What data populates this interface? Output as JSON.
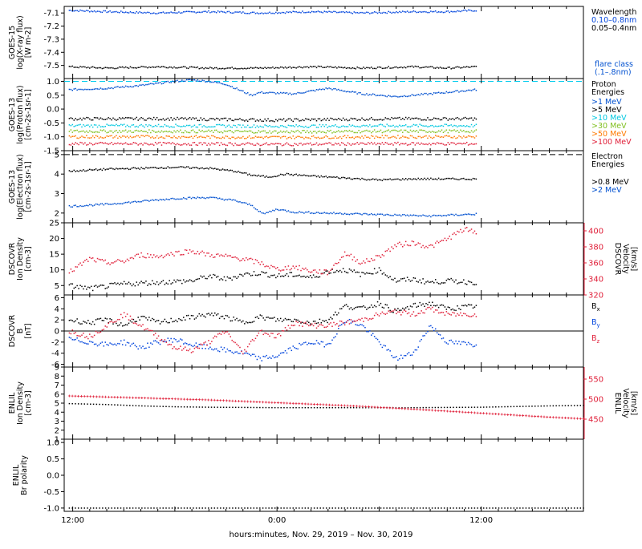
{
  "xaxis": {
    "label": "hours:minutes, Nov. 29, 2019 – Nov. 30, 2019",
    "range_hours": [
      11.5,
      16.0
    ],
    "tick_labels": [
      {
        "hour": 12,
        "label": "12:00"
      },
      {
        "hour": 24,
        "label": "0:00"
      },
      {
        "hour": 36,
        "label": "12:00"
      }
    ]
  },
  "chart_data": [
    {
      "id": "goes15-xray",
      "type": "scatter",
      "ylabel": [
        "GOES-15",
        "log(X-ray flux)",
        "[W m-2]"
      ],
      "ylim": [
        -7.6,
        -7.05
      ],
      "yticks": [
        "-7.1",
        "-7.2",
        "-7.3",
        "-7.4",
        "-7.5"
      ],
      "yticks_values": [
        -7.1,
        -7.2,
        -7.3,
        -7.4,
        -7.5
      ],
      "legend_title": "Wavelength",
      "series": [
        {
          "name": "0.10–0.8nm",
          "color": "#0044dd",
          "x": [
            11.8,
            14,
            17,
            20,
            23,
            26,
            29,
            32,
            34,
            35.7
          ],
          "y": [
            -7.08,
            -7.09,
            -7.1,
            -7.09,
            -7.1,
            -7.09,
            -7.1,
            -7.09,
            -7.09,
            -7.08
          ]
        },
        {
          "name": "0.05–0.4nm",
          "color": "#000000",
          "x": [
            11.8,
            14,
            17,
            20,
            23,
            26,
            29,
            32,
            34,
            35.7
          ],
          "y": [
            -7.51,
            -7.52,
            -7.51,
            -7.52,
            -7.52,
            -7.51,
            -7.52,
            -7.51,
            -7.52,
            -7.51
          ]
        }
      ],
      "note": [
        "flare class",
        "(.1–.8nm)"
      ]
    },
    {
      "id": "goes13-proton",
      "type": "scatter",
      "ylabel": [
        "GOES-13",
        "log(Proton flux)",
        "[cm-2s-1sr-1]"
      ],
      "ylim": [
        -1.5,
        1.1
      ],
      "yticks": [
        "1.0",
        "0.5",
        "0.0",
        "-0.5",
        "-1.0",
        "-1.5"
      ],
      "yticks_values": [
        1.0,
        0.5,
        0.0,
        -0.5,
        -1.0,
        -1.5
      ],
      "legend_title": [
        "Proton",
        "Energies"
      ],
      "series": [
        {
          "name": ">1 MeV",
          "color": "#0050d0",
          "x": [
            11.8,
            14,
            16,
            18,
            19,
            20,
            21,
            22.5,
            23,
            25,
            27,
            29,
            31,
            33,
            35.7
          ],
          "y": [
            0.7,
            0.75,
            0.85,
            1.0,
            1.05,
            1.0,
            0.9,
            0.5,
            0.6,
            0.55,
            0.75,
            0.55,
            0.45,
            0.55,
            0.7
          ]
        },
        {
          "name": ">5 MeV",
          "color": "#000000",
          "x": [
            11.8,
            18,
            24,
            30,
            35.7
          ],
          "y": [
            -0.35,
            -0.35,
            -0.4,
            -0.35,
            -0.35
          ]
        },
        {
          "name": ">10 MeV",
          "color": "#00c8e0",
          "x": [
            11.8,
            18,
            24,
            30,
            35.7
          ],
          "y": [
            -0.6,
            -0.6,
            -0.62,
            -0.6,
            -0.6
          ]
        },
        {
          "name": ">30 MeV",
          "color": "#80c020",
          "x": [
            11.8,
            18,
            24,
            30,
            35.7
          ],
          "y": [
            -0.8,
            -0.8,
            -0.82,
            -0.8,
            -0.8
          ]
        },
        {
          "name": ">50 MeV",
          "color": "#ff7a00",
          "x": [
            11.8,
            18,
            24,
            30,
            35.7
          ],
          "y": [
            -1.0,
            -1.0,
            -1.02,
            -1.0,
            -1.0
          ]
        },
        {
          "name": ">100 MeV",
          "color": "#e0203a",
          "x": [
            11.8,
            18,
            24,
            30,
            35.7
          ],
          "y": [
            -1.25,
            -1.25,
            -1.27,
            -1.25,
            -1.25
          ]
        }
      ],
      "threshold": {
        "y": 1.0,
        "color": "#00ccee"
      }
    },
    {
      "id": "goes13-electron",
      "type": "scatter",
      "ylabel": [
        "GOES-13",
        "log(Electron flux)",
        "[cm-2s-1sr-1]"
      ],
      "ylim": [
        1.5,
        5.2
      ],
      "yticks": [
        "5",
        "4",
        "3",
        "2"
      ],
      "yticks_values": [
        5,
        4,
        3,
        2
      ],
      "legend_title": [
        "Electron",
        "Energies"
      ],
      "series": [
        {
          "name": ">0.8 MeV",
          "color": "#000000",
          "x": [
            11.8,
            14,
            16,
            18,
            20,
            21.5,
            22.5,
            23.5,
            24.5,
            26,
            28,
            30,
            32,
            34,
            35.7
          ],
          "y": [
            4.15,
            4.25,
            4.3,
            4.35,
            4.3,
            4.15,
            3.95,
            3.85,
            4.0,
            3.9,
            3.8,
            3.7,
            3.75,
            3.75,
            3.75
          ]
        },
        {
          "name": ">2 MeV",
          "color": "#0050d0",
          "x": [
            11.8,
            14,
            16,
            18,
            20,
            21.5,
            22.5,
            23.2,
            24,
            25,
            27,
            29,
            31,
            33,
            35.7
          ],
          "y": [
            2.35,
            2.45,
            2.6,
            2.75,
            2.8,
            2.65,
            2.4,
            1.95,
            2.2,
            2.05,
            2.0,
            1.95,
            1.9,
            1.85,
            1.95
          ]
        }
      ],
      "threshold": {
        "y": 5.0,
        "color": "#000000"
      }
    },
    {
      "id": "dscovr-plasma",
      "type": "scatter",
      "ylabel": [
        "DSCOVR",
        "Ion Density",
        "[cm-3]"
      ],
      "ylim": [
        2,
        25
      ],
      "yticks": [
        "25",
        "20",
        "15",
        "10",
        "5"
      ],
      "yticks_values": [
        25,
        20,
        15,
        10,
        5
      ],
      "ylabel_right": [
        "DSCOVR",
        "Velocity",
        "[km/s]"
      ],
      "ylim_right": [
        320,
        410
      ],
      "yticks_right": [
        "400",
        "380",
        "360",
        "340",
        "320"
      ],
      "yticks_right_values": [
        400,
        380,
        360,
        340,
        320
      ],
      "series": [
        {
          "name": "Ion Density",
          "color": "#000000",
          "axis": "left",
          "x": [
            11.8,
            13,
            15,
            17,
            19,
            20,
            21,
            22,
            23,
            24,
            25,
            26,
            27,
            28,
            29,
            30,
            31,
            32,
            33,
            34,
            35.7
          ],
          "y": [
            5,
            4,
            5.5,
            6,
            6.5,
            8,
            7,
            8.5,
            9,
            8,
            8.5,
            7.5,
            9.5,
            10,
            8.5,
            10,
            6.5,
            7,
            6,
            6.5,
            6
          ]
        },
        {
          "name": "Velocity",
          "color": "#e0203a",
          "axis": "right",
          "x": [
            11.8,
            13,
            14,
            15,
            16,
            17,
            18,
            19,
            20,
            21,
            22,
            23,
            24,
            25,
            26,
            27,
            28,
            29,
            30,
            31,
            32,
            33,
            34,
            35,
            35.7
          ],
          "y": [
            348,
            365,
            360,
            362,
            370,
            368,
            372,
            375,
            370,
            368,
            365,
            360,
            352,
            355,
            350,
            348,
            372,
            360,
            368,
            382,
            385,
            380,
            390,
            402,
            398
          ]
        }
      ]
    },
    {
      "id": "dscovr-mag",
      "type": "scatter",
      "ylabel": [
        "DSCOVR",
        "B",
        "[nT]"
      ],
      "ylim": [
        -6.5,
        6.5
      ],
      "yticks": [
        "6",
        "4",
        "2",
        "0",
        "-2",
        "-4",
        "-6"
      ],
      "yticks_values": [
        6,
        4,
        2,
        0,
        -2,
        -4,
        -6
      ],
      "zero_line": true,
      "series": [
        {
          "name": "Bx",
          "color": "#000000",
          "x": [
            11.8,
            13,
            14,
            15,
            16,
            17,
            18,
            19,
            20,
            21,
            22,
            23,
            24,
            25,
            26,
            27,
            28,
            29,
            30,
            31,
            32,
            33,
            34,
            35.7
          ],
          "y": [
            2,
            1.5,
            2,
            1,
            2.5,
            1.5,
            2,
            2.5,
            3,
            2.5,
            1.5,
            2.5,
            2,
            2,
            1.5,
            2,
            4.5,
            4,
            5,
            3.5,
            4.5,
            5,
            4,
            4.5
          ]
        },
        {
          "name": "By",
          "color": "#0044dd",
          "x": [
            11.8,
            13,
            14,
            15,
            16,
            17,
            18,
            19,
            20,
            21,
            22,
            23,
            24,
            25,
            26,
            27,
            28,
            29,
            30,
            31,
            32,
            33,
            34,
            35.7
          ],
          "y": [
            -1.5,
            -2,
            -2.5,
            -2,
            -3,
            -2,
            -1.5,
            -2.5,
            -3,
            -3.5,
            -4,
            -5,
            -4.5,
            -3,
            -2,
            -2.5,
            2,
            1,
            -2,
            -5,
            -4,
            1,
            -2,
            -2.5
          ]
        },
        {
          "name": "Bz",
          "color": "#e0203a",
          "x": [
            11.8,
            13,
            14,
            15,
            16,
            17,
            18,
            19,
            20,
            21,
            22,
            23,
            24,
            25,
            26,
            27,
            28,
            29,
            30,
            31,
            32,
            33,
            34,
            35.7
          ],
          "y": [
            0,
            -1,
            1,
            3,
            1,
            -1,
            -3,
            -3.5,
            -2,
            0,
            -4,
            0,
            -1,
            1.5,
            1,
            1,
            1.5,
            2,
            3,
            3.5,
            3,
            4,
            3,
            3
          ]
        }
      ]
    },
    {
      "id": "enlil-plasma",
      "type": "scatter",
      "ylabel": [
        "ENLIL",
        "Ion Density",
        "[cm-3]"
      ],
      "ylim": [
        1,
        9
      ],
      "yticks": [
        "9",
        "8",
        "7",
        "6",
        "5",
        "4",
        "3",
        "2",
        "1"
      ],
      "yticks_values": [
        9,
        8,
        7,
        6,
        5,
        4,
        3,
        2,
        1
      ],
      "ylabel_right": [
        "ENLIL",
        "Velocity",
        "[km/s]"
      ],
      "ylim_right": [
        400,
        580
      ],
      "yticks_right": [
        "550",
        "500",
        "450"
      ],
      "yticks_right_values": [
        550,
        500,
        450
      ],
      "series": [
        {
          "name": "Ion Density",
          "color": "#000000",
          "axis": "left",
          "x": [
            11.8,
            14,
            16,
            18,
            20,
            24,
            28,
            32,
            36,
            40,
            42
          ],
          "y": [
            4.95,
            4.85,
            4.7,
            4.6,
            4.55,
            4.5,
            4.5,
            4.5,
            4.55,
            4.7,
            4.75
          ]
        },
        {
          "name": "Velocity",
          "color": "#e0203a",
          "axis": "right",
          "x": [
            11.8,
            16,
            20,
            24,
            28,
            32,
            36,
            40,
            42
          ],
          "y": [
            508,
            503,
            498,
            491,
            484,
            475,
            465,
            455,
            451
          ]
        }
      ]
    },
    {
      "id": "enlil-polarity",
      "type": "scatter",
      "ylabel": [
        "ENLIL",
        "Br polarity"
      ],
      "ylim": [
        -1.1,
        1.1
      ],
      "yticks": [
        "1.0",
        "0.5",
        "0.0",
        "-0.5",
        "-1.0"
      ],
      "yticks_values": [
        1.0,
        0.5,
        0.0,
        -0.5,
        -1.0
      ],
      "series": [
        {
          "name": "Polarity",
          "color": "#000000",
          "x": [
            11.8,
            42
          ],
          "y": [
            -1.0,
            -1.0
          ]
        }
      ]
    }
  ]
}
